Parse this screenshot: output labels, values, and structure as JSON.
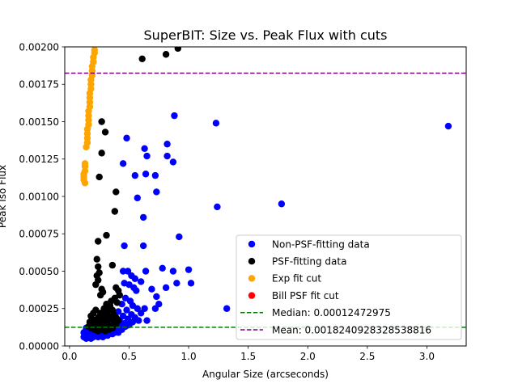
{
  "chart_data": {
    "type": "scatter",
    "title": "SuperBIT: Size vs. Peak Flux with cuts",
    "xlabel": "Angular Size (arcseconds)",
    "ylabel": "Peak Iso Flux",
    "xlim": [
      -0.04,
      3.33
    ],
    "ylim": [
      0,
      0.002
    ],
    "x_ticks": [
      0.0,
      0.5,
      1.0,
      1.5,
      2.0,
      2.5,
      3.0
    ],
    "x_tick_labels": [
      "0.0",
      "0.5",
      "1.0",
      "1.5",
      "2.0",
      "2.5",
      "3.0"
    ],
    "y_ticks": [
      0,
      0.00025,
      0.0005,
      0.00075,
      0.001,
      0.00125,
      0.0015,
      0.00175,
      0.002
    ],
    "y_tick_labels": [
      "0.00000",
      "0.00025",
      "0.00050",
      "0.00075",
      "0.00100",
      "0.00125",
      "0.00150",
      "0.00175",
      "0.00200"
    ],
    "grid": false,
    "legend_placement": "lower-right",
    "series": [
      {
        "name": "Non-PSF-fitting data",
        "color": "#0000ff",
        "points": [
          [
            3.18,
            0.00147
          ],
          [
            1.78,
            0.00095
          ],
          [
            1.23,
            0.00149
          ],
          [
            1.24,
            0.00093
          ],
          [
            1.32,
            0.00025
          ],
          [
            0.88,
            0.00154
          ],
          [
            0.82,
            0.00135
          ],
          [
            0.82,
            0.00127
          ],
          [
            0.87,
            0.00123
          ],
          [
            0.92,
            0.00073
          ],
          [
            0.63,
            0.00132
          ],
          [
            0.65,
            0.00127
          ],
          [
            0.64,
            0.00115
          ],
          [
            0.72,
            0.00114
          ],
          [
            0.73,
            0.00103
          ],
          [
            0.62,
            0.00086
          ],
          [
            0.62,
            0.00067
          ],
          [
            0.55,
            0.00114
          ],
          [
            0.57,
            0.00099
          ],
          [
            0.48,
            0.00139
          ],
          [
            0.45,
            0.00122
          ],
          [
            0.46,
            0.00067
          ],
          [
            0.78,
            0.00052
          ],
          [
            0.87,
            0.0005
          ],
          [
            1.0,
            0.00051
          ],
          [
            0.9,
            0.00042
          ],
          [
            1.02,
            0.00042
          ],
          [
            0.81,
            0.00039
          ],
          [
            0.64,
            0.0005
          ],
          [
            0.6,
            0.00043
          ],
          [
            0.69,
            0.00038
          ],
          [
            0.73,
            0.00033
          ],
          [
            0.72,
            0.00025
          ],
          [
            0.75,
            0.00028
          ],
          [
            0.63,
            0.00025
          ],
          [
            0.65,
            0.00017
          ],
          [
            0.45,
            0.0005
          ],
          [
            0.49,
            0.0005
          ],
          [
            0.52,
            0.00047
          ],
          [
            0.55,
            0.00045
          ],
          [
            0.46,
            0.00042
          ],
          [
            0.5,
            0.00041
          ],
          [
            0.54,
            0.00039
          ],
          [
            0.56,
            0.00037
          ],
          [
            0.42,
            0.00034
          ],
          [
            0.47,
            0.00032
          ],
          [
            0.51,
            0.0003
          ],
          [
            0.53,
            0.00027
          ],
          [
            0.57,
            0.00025
          ],
          [
            0.6,
            0.00022
          ],
          [
            0.44,
            0.00028
          ],
          [
            0.48,
            0.00024
          ],
          [
            0.52,
            0.00021
          ],
          [
            0.55,
            0.00019
          ],
          [
            0.58,
            0.00017
          ],
          [
            0.41,
            0.00023
          ],
          [
            0.45,
            0.0002
          ],
          [
            0.49,
            0.00018
          ],
          [
            0.53,
            0.00016
          ],
          [
            0.42,
            0.00017
          ],
          [
            0.46,
            0.00015
          ],
          [
            0.5,
            0.00014
          ],
          [
            0.38,
            0.00021
          ],
          [
            0.4,
            0.00018
          ],
          [
            0.43,
            0.00014
          ],
          [
            0.47,
            0.00013
          ],
          [
            0.39,
            0.00015
          ],
          [
            0.36,
            0.00017
          ],
          [
            0.35,
            0.00013
          ],
          [
            0.37,
            0.00011
          ],
          [
            0.4,
            0.00012
          ],
          [
            0.44,
            0.00011
          ],
          [
            0.33,
            0.00012
          ],
          [
            0.31,
            0.0001
          ],
          [
            0.29,
            0.00012
          ],
          [
            0.27,
            9e-05
          ],
          [
            0.25,
            0.00011
          ],
          [
            0.23,
            9e-05
          ],
          [
            0.21,
            0.0001
          ],
          [
            0.19,
            8e-05
          ],
          [
            0.17,
            9e-05
          ],
          [
            0.15,
            8e-05
          ],
          [
            0.13,
            7e-05
          ],
          [
            0.12,
            9e-05
          ],
          [
            0.12,
            6e-05
          ],
          [
            0.14,
            5e-05
          ],
          [
            0.16,
            6e-05
          ],
          [
            0.18,
            5e-05
          ],
          [
            0.2,
            6e-05
          ],
          [
            0.22,
            7e-05
          ],
          [
            0.24,
            6e-05
          ],
          [
            0.26,
            7e-05
          ],
          [
            0.28,
            6e-05
          ],
          [
            0.3,
            8e-05
          ],
          [
            0.32,
            7e-05
          ],
          [
            0.34,
            9e-05
          ],
          [
            0.36,
            8e-05
          ],
          [
            0.38,
            9e-05
          ],
          [
            0.41,
            9e-05
          ],
          [
            0.3,
            0.00011
          ],
          [
            0.26,
            0.00013
          ],
          [
            0.22,
            0.00012
          ],
          [
            0.18,
            0.00011
          ],
          [
            0.15,
            0.0001
          ],
          [
            0.14,
            0.00012
          ],
          [
            0.2,
            0.00013
          ],
          [
            0.24,
            0.00014
          ],
          [
            0.28,
            0.00015
          ],
          [
            0.32,
            0.00015
          ],
          [
            0.35,
            0.00016
          ]
        ]
      },
      {
        "name": "PSF-fitting data",
        "color": "#000000",
        "points": [
          [
            0.91,
            0.00199
          ],
          [
            0.81,
            0.00195
          ],
          [
            0.61,
            0.00192
          ],
          [
            0.27,
            0.0015
          ],
          [
            0.3,
            0.00143
          ],
          [
            0.27,
            0.00129
          ],
          [
            0.25,
            0.00113
          ],
          [
            0.39,
            0.00103
          ],
          [
            0.38,
            0.0009
          ],
          [
            0.31,
            0.00074
          ],
          [
            0.24,
            0.0007
          ],
          [
            0.36,
            0.00054
          ],
          [
            0.23,
            0.00058
          ],
          [
            0.24,
            0.00053
          ],
          [
            0.25,
            0.00049
          ],
          [
            0.23,
            0.00047
          ],
          [
            0.24,
            0.00044
          ],
          [
            0.22,
            0.00041
          ],
          [
            0.27,
            0.00038
          ],
          [
            0.28,
            0.00036
          ],
          [
            0.26,
            0.00034
          ],
          [
            0.39,
            0.00039
          ],
          [
            0.41,
            0.00037
          ],
          [
            0.42,
            0.00034
          ],
          [
            0.38,
            0.00032
          ],
          [
            0.4,
            0.00029
          ],
          [
            0.35,
            0.0003
          ],
          [
            0.34,
            0.00027
          ],
          [
            0.31,
            0.00028
          ],
          [
            0.29,
            0.00025
          ],
          [
            0.32,
            0.00024
          ],
          [
            0.36,
            0.00024
          ],
          [
            0.26,
            0.00022
          ],
          [
            0.22,
            0.00024
          ],
          [
            0.2,
            0.00022
          ],
          [
            0.18,
            0.0002
          ],
          [
            0.19,
            0.00018
          ],
          [
            0.21,
            0.00017
          ],
          [
            0.24,
            0.00019
          ],
          [
            0.27,
            0.0002
          ],
          [
            0.3,
            0.00021
          ],
          [
            0.33,
            0.0002
          ],
          [
            0.37,
            0.00021
          ],
          [
            0.39,
            0.00019
          ],
          [
            0.41,
            0.00017
          ],
          [
            0.35,
            0.00018
          ],
          [
            0.32,
            0.00017
          ],
          [
            0.29,
            0.00018
          ],
          [
            0.25,
            0.00016
          ],
          [
            0.22,
            0.00015
          ],
          [
            0.19,
            0.00014
          ],
          [
            0.17,
            0.00016
          ],
          [
            0.2,
            0.00012
          ],
          [
            0.23,
            0.00013
          ],
          [
            0.26,
            0.00012
          ],
          [
            0.29,
            0.00013
          ],
          [
            0.31,
            0.00014
          ],
          [
            0.34,
            0.00013
          ],
          [
            0.37,
            0.00014
          ],
          [
            0.39,
            0.00015
          ],
          [
            0.36,
            0.00012
          ],
          [
            0.33,
            0.00011
          ],
          [
            0.3,
            0.0001
          ],
          [
            0.27,
            0.00011
          ],
          [
            0.24,
            0.0001
          ],
          [
            0.21,
            0.00011
          ],
          [
            0.18,
            0.00012
          ],
          [
            0.16,
            0.00013
          ],
          [
            0.23,
            0.00015
          ],
          [
            0.28,
            0.00016
          ]
        ]
      },
      {
        "name": "Exp fit cut",
        "color": "#ffa500",
        "points": [
          [
            0.21,
            0.00198
          ],
          [
            0.21,
            0.00196
          ],
          [
            0.2,
            0.00193
          ],
          [
            0.2,
            0.0019
          ],
          [
            0.19,
            0.00187
          ],
          [
            0.19,
            0.00184
          ],
          [
            0.19,
            0.00181
          ],
          [
            0.18,
            0.00178
          ],
          [
            0.18,
            0.00175
          ],
          [
            0.18,
            0.00172
          ],
          [
            0.17,
            0.00169
          ],
          [
            0.17,
            0.00166
          ],
          [
            0.17,
            0.00163
          ],
          [
            0.17,
            0.0016
          ],
          [
            0.16,
            0.00157
          ],
          [
            0.16,
            0.00154
          ],
          [
            0.16,
            0.00151
          ],
          [
            0.16,
            0.00148
          ],
          [
            0.15,
            0.00145
          ],
          [
            0.15,
            0.00142
          ],
          [
            0.15,
            0.00139
          ],
          [
            0.15,
            0.00136
          ],
          [
            0.14,
            0.00133
          ],
          [
            0.13,
            0.00122
          ],
          [
            0.13,
            0.0012
          ],
          [
            0.13,
            0.00117
          ],
          [
            0.12,
            0.00115
          ],
          [
            0.12,
            0.00113
          ],
          [
            0.12,
            0.00111
          ],
          [
            0.13,
            0.00109
          ]
        ]
      },
      {
        "name": "Bill PSF fit cut",
        "color": "#ff0000",
        "points": []
      }
    ],
    "hlines": [
      {
        "name": "Median: 0.00012472975",
        "y": 0.00012472975,
        "color": "#008000",
        "style": "dashed"
      },
      {
        "name": "Mean: 0.0018240928328538816",
        "y": 0.0018240928328538816,
        "color": "#800080",
        "style": "dashed"
      }
    ]
  }
}
